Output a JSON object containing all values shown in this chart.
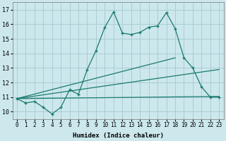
{
  "xlabel": "Humidex (Indice chaleur)",
  "background_color": "#cce8ec",
  "grid_color": "#aacdd4",
  "line_color": "#1a7a6e",
  "xlim": [
    -0.5,
    23.5
  ],
  "ylim": [
    9.5,
    17.5
  ],
  "xticks": [
    0,
    1,
    2,
    3,
    4,
    5,
    6,
    7,
    8,
    9,
    10,
    11,
    12,
    13,
    14,
    15,
    16,
    17,
    18,
    19,
    20,
    21,
    22,
    23
  ],
  "yticks": [
    10,
    11,
    12,
    13,
    14,
    15,
    16,
    17
  ],
  "series_main": {
    "x": [
      0,
      1,
      2,
      3,
      4,
      5,
      6,
      7,
      8,
      9,
      10,
      11,
      12,
      13,
      14,
      15,
      16,
      17,
      18,
      19,
      20,
      21,
      22,
      23
    ],
    "y": [
      10.9,
      10.6,
      10.7,
      10.3,
      9.85,
      10.3,
      11.5,
      11.2,
      12.9,
      14.2,
      15.8,
      16.85,
      15.4,
      15.3,
      15.45,
      15.8,
      15.9,
      16.8,
      15.7,
      13.7,
      13.0,
      11.7,
      11.0,
      11.0
    ]
  },
  "series_line1": {
    "x": [
      0,
      18
    ],
    "y": [
      10.9,
      13.7
    ]
  },
  "series_line2": {
    "x": [
      0,
      23
    ],
    "y": [
      10.9,
      12.9
    ]
  },
  "series_line3": {
    "x": [
      0,
      23
    ],
    "y": [
      10.9,
      11.05
    ]
  }
}
